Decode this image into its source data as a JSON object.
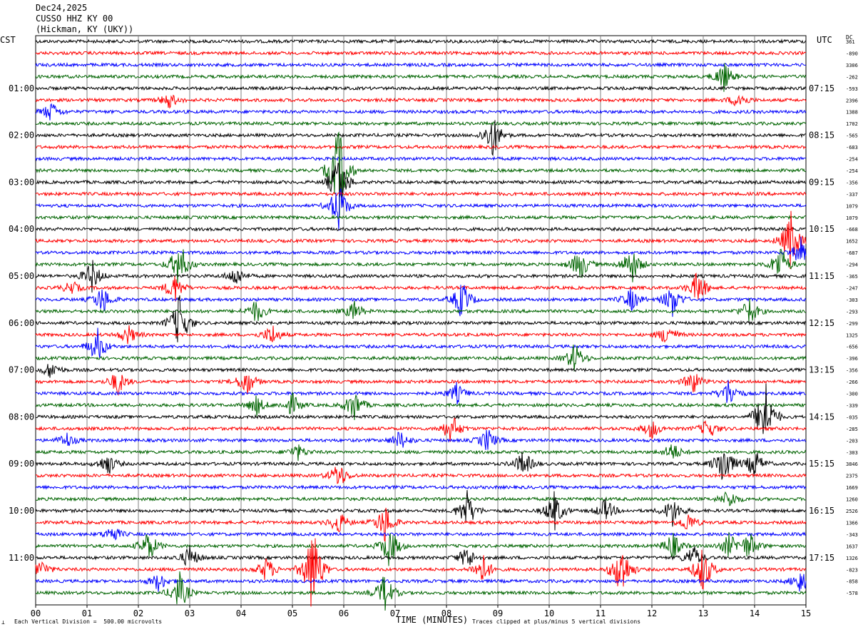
{
  "header": {
    "date": "Dec24,2025",
    "station": "CUSSO HHZ KY 00",
    "location": "(Hickman, KY (UKY))"
  },
  "left_zone_label": "CST",
  "right_zone_label": "UTC",
  "dc_label": "DC",
  "footer": {
    "scale_note": "Each Vertical Division =  500.00 microvolts",
    "xlabel": "TIME (MINUTES)",
    "clip_note": "Traces clipped at plus/minus 5 vertical divisions"
  },
  "colors": {
    "trace_cycle": [
      "#000000",
      "#ff0000",
      "#0000ff",
      "#006400"
    ],
    "grid": "#808080"
  },
  "chart_data": {
    "type": "line",
    "description_kind": "helicorder",
    "x_range": [
      0,
      15
    ],
    "x_ticks": [
      "00",
      "01",
      "02",
      "03",
      "04",
      "05",
      "06",
      "07",
      "08",
      "09",
      "10",
      "11",
      "12",
      "13",
      "14",
      "15"
    ],
    "left_hour_labels": [
      {
        "row": 4,
        "label": "01:00"
      },
      {
        "row": 8,
        "label": "02:00"
      },
      {
        "row": 12,
        "label": "03:00"
      },
      {
        "row": 16,
        "label": "04:00"
      },
      {
        "row": 20,
        "label": "05:00"
      },
      {
        "row": 24,
        "label": "06:00"
      },
      {
        "row": 28,
        "label": "07:00"
      },
      {
        "row": 32,
        "label": "08:00"
      },
      {
        "row": 36,
        "label": "09:00"
      },
      {
        "row": 40,
        "label": "10:00"
      },
      {
        "row": 44,
        "label": "11:00"
      }
    ],
    "right_hour_labels": [
      {
        "row": 4,
        "label": "07:15"
      },
      {
        "row": 8,
        "label": "08:15"
      },
      {
        "row": 12,
        "label": "09:15"
      },
      {
        "row": 16,
        "label": "10:15"
      },
      {
        "row": 20,
        "label": "11:15"
      },
      {
        "row": 24,
        "label": "12:15"
      },
      {
        "row": 28,
        "label": "13:15"
      },
      {
        "row": 32,
        "label": "14:15"
      },
      {
        "row": 36,
        "label": "15:15"
      },
      {
        "row": 40,
        "label": "16:15"
      },
      {
        "row": 44,
        "label": "17:15"
      }
    ],
    "dc_offsets": [
      "361",
      "-890",
      "3306",
      "-262",
      "-593",
      "2396",
      "1388",
      "1702",
      "-565",
      "-683",
      "-254",
      "-254",
      "-356",
      "-337",
      "1079",
      "1079",
      "-668",
      "1652",
      "-687",
      "-294",
      "-365",
      "-247",
      "-303",
      "-293",
      "-299",
      "1325",
      "-656",
      "-396",
      "-356",
      "-266",
      "-300",
      "-339",
      "-035",
      "-285",
      "-203",
      "-303",
      "3846",
      "2375",
      "1669",
      "1260",
      "2526",
      "1366",
      "-343",
      "1637",
      "1326",
      "-823",
      "-858",
      "-578"
    ],
    "events": [
      {
        "row": 3,
        "minute": 13.4,
        "amp": 1.5
      },
      {
        "row": 5,
        "minute": 2.6,
        "amp": 0.8
      },
      {
        "row": 5,
        "minute": 13.7,
        "amp": 0.9
      },
      {
        "row": 6,
        "minute": 0.3,
        "amp": 1.0
      },
      {
        "row": 8,
        "minute": 8.9,
        "amp": 2.2
      },
      {
        "row": 11,
        "minute": 5.9,
        "amp": 5
      },
      {
        "row": 12,
        "minute": 5.9,
        "amp": 3
      },
      {
        "row": 14,
        "minute": 5.9,
        "amp": 2.5
      },
      {
        "row": 17,
        "minute": 14.7,
        "amp": 3
      },
      {
        "row": 18,
        "minute": 14.9,
        "amp": 1.4
      },
      {
        "row": 19,
        "minute": 2.8,
        "amp": 2.5
      },
      {
        "row": 19,
        "minute": 10.6,
        "amp": 1.7
      },
      {
        "row": 19,
        "minute": 11.6,
        "amp": 2
      },
      {
        "row": 19,
        "minute": 14.5,
        "amp": 2
      },
      {
        "row": 20,
        "minute": 1.1,
        "amp": 1.6
      },
      {
        "row": 20,
        "minute": 3.9,
        "amp": 1.0
      },
      {
        "row": 21,
        "minute": 0.7,
        "amp": 0.7
      },
      {
        "row": 21,
        "minute": 2.7,
        "amp": 1.5
      },
      {
        "row": 21,
        "minute": 12.9,
        "amp": 1.8
      },
      {
        "row": 22,
        "minute": 1.3,
        "amp": 1.5
      },
      {
        "row": 22,
        "minute": 8.3,
        "amp": 2
      },
      {
        "row": 22,
        "minute": 11.6,
        "amp": 1.2
      },
      {
        "row": 22,
        "minute": 12.4,
        "amp": 1.7
      },
      {
        "row": 23,
        "minute": 4.3,
        "amp": 1.2
      },
      {
        "row": 23,
        "minute": 6.2,
        "amp": 1.0
      },
      {
        "row": 23,
        "minute": 13.9,
        "amp": 1.4
      },
      {
        "row": 24,
        "minute": 2.8,
        "amp": 3
      },
      {
        "row": 25,
        "minute": 1.8,
        "amp": 1.0
      },
      {
        "row": 25,
        "minute": 4.6,
        "amp": 1.1
      },
      {
        "row": 25,
        "minute": 12.3,
        "amp": 1.2
      },
      {
        "row": 26,
        "minute": 1.2,
        "amp": 1.8
      },
      {
        "row": 27,
        "minute": 10.5,
        "amp": 1.6
      },
      {
        "row": 28,
        "minute": 0.3,
        "amp": 0.9
      },
      {
        "row": 29,
        "minute": 1.6,
        "amp": 1.3
      },
      {
        "row": 29,
        "minute": 4.1,
        "amp": 1.5
      },
      {
        "row": 29,
        "minute": 12.8,
        "amp": 1.2
      },
      {
        "row": 30,
        "minute": 8.2,
        "amp": 1.0
      },
      {
        "row": 30,
        "minute": 13.5,
        "amp": 1.5
      },
      {
        "row": 31,
        "minute": 4.3,
        "amp": 1.0
      },
      {
        "row": 31,
        "minute": 5.0,
        "amp": 1.1
      },
      {
        "row": 31,
        "minute": 6.2,
        "amp": 1.6
      },
      {
        "row": 32,
        "minute": 14.2,
        "amp": 4
      },
      {
        "row": 33,
        "minute": 8.1,
        "amp": 1.6
      },
      {
        "row": 33,
        "minute": 12.0,
        "amp": 1.0
      },
      {
        "row": 33,
        "minute": 13.1,
        "amp": 1.1
      },
      {
        "row": 34,
        "minute": 0.6,
        "amp": 0.8
      },
      {
        "row": 34,
        "minute": 7.1,
        "amp": 1.0
      },
      {
        "row": 34,
        "minute": 8.8,
        "amp": 1.2
      },
      {
        "row": 35,
        "minute": 5.1,
        "amp": 0.8
      },
      {
        "row": 35,
        "minute": 12.4,
        "amp": 1.0
      },
      {
        "row": 36,
        "minute": 1.4,
        "amp": 1.2
      },
      {
        "row": 36,
        "minute": 9.5,
        "amp": 1.4
      },
      {
        "row": 36,
        "minute": 13.4,
        "amp": 2.5
      },
      {
        "row": 36,
        "minute": 14.0,
        "amp": 1.5
      },
      {
        "row": 37,
        "minute": 5.9,
        "amp": 1.4
      },
      {
        "row": 39,
        "minute": 13.5,
        "amp": 1.0
      },
      {
        "row": 40,
        "minute": 8.4,
        "amp": 2
      },
      {
        "row": 40,
        "minute": 10.1,
        "amp": 2
      },
      {
        "row": 40,
        "minute": 11.1,
        "amp": 1.2
      },
      {
        "row": 40,
        "minute": 12.4,
        "amp": 1.5
      },
      {
        "row": 41,
        "minute": 5.9,
        "amp": 1.2
      },
      {
        "row": 41,
        "minute": 6.8,
        "amp": 2
      },
      {
        "row": 41,
        "minute": 12.7,
        "amp": 1.0
      },
      {
        "row": 42,
        "minute": 1.5,
        "amp": 0.9
      },
      {
        "row": 43,
        "minute": 2.2,
        "amp": 1.6
      },
      {
        "row": 43,
        "minute": 6.9,
        "amp": 2.2
      },
      {
        "row": 43,
        "minute": 12.4,
        "amp": 1.4
      },
      {
        "row": 43,
        "minute": 13.5,
        "amp": 1.2
      },
      {
        "row": 43,
        "minute": 13.9,
        "amp": 1.4
      },
      {
        "row": 44,
        "minute": 3.0,
        "amp": 1.2
      },
      {
        "row": 44,
        "minute": 8.4,
        "amp": 1.2
      },
      {
        "row": 44,
        "minute": 12.8,
        "amp": 1.3
      },
      {
        "row": 45,
        "minute": 0.1,
        "amp": 1.0
      },
      {
        "row": 45,
        "minute": 4.5,
        "amp": 1.3
      },
      {
        "row": 45,
        "minute": 5.4,
        "amp": 5
      },
      {
        "row": 45,
        "minute": 8.7,
        "amp": 1.6
      },
      {
        "row": 45,
        "minute": 11.4,
        "amp": 3
      },
      {
        "row": 45,
        "minute": 13.0,
        "amp": 2.5
      },
      {
        "row": 46,
        "minute": 2.4,
        "amp": 1.0
      },
      {
        "row": 46,
        "minute": 14.9,
        "amp": 1.2
      },
      {
        "row": 47,
        "minute": 2.8,
        "amp": 2
      },
      {
        "row": 47,
        "minute": 6.8,
        "amp": 2
      }
    ]
  }
}
